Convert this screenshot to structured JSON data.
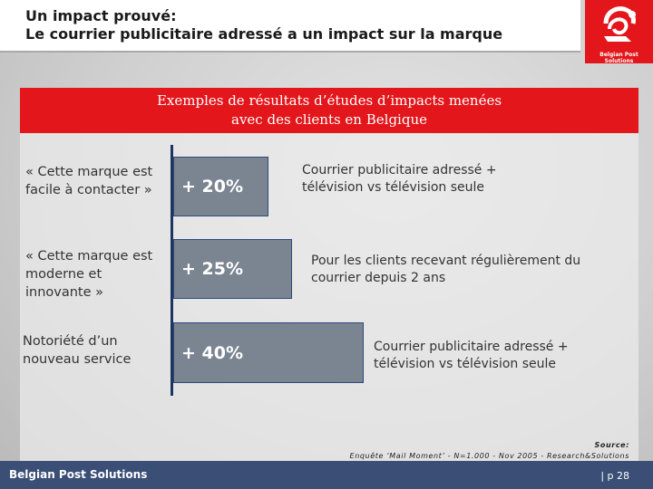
{
  "header": {
    "title_line1": "Un impact prouvé:",
    "title_line2": "Le courrier publicitaire adressé a un impact sur la marque"
  },
  "logo": {
    "text": "Belgian Post Solutions",
    "color": "#e3161b"
  },
  "banner": {
    "line1": "Exemples de résultats d’études d’impacts menées",
    "line2": "avec des clients en Belgique"
  },
  "rows": [
    {
      "label": "« Cette marque est facile à contacter »",
      "value": "+ 20%",
      "numeric": 20,
      "description": "Courrier publicitaire adressé + télévision vs télévision seule"
    },
    {
      "label": "« Cette marque est moderne et innovante »",
      "value": "+ 25%",
      "numeric": 25,
      "description": "Pour les clients recevant régulièrement du courrier depuis 2 ans"
    },
    {
      "label": "Notoriété d’un nouveau service",
      "value": "+ 40%",
      "numeric": 40,
      "description": "Courrier publicitaire adressé + télévision vs télévision seule"
    }
  ],
  "source": {
    "heading": "Source:",
    "text": "Enquête ‘Mail Moment’ - N=1.000 - Nov 2005 - Research&Solutions"
  },
  "footer": {
    "brand": "Belgian Post Solutions",
    "page": "| p 28"
  },
  "colors": {
    "accent": "#e3161b",
    "footer": "#3a4e76",
    "bar": "#7b8491"
  }
}
